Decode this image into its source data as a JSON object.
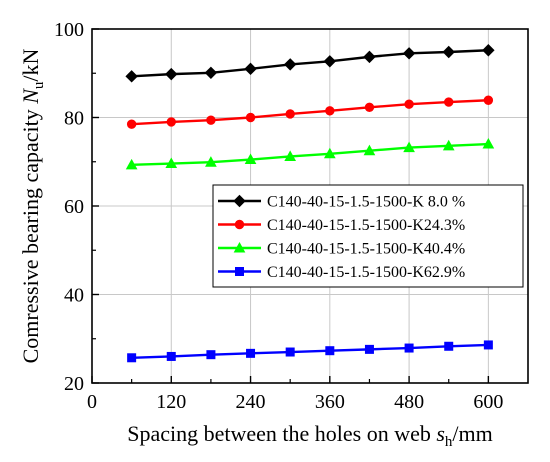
{
  "chart_data": {
    "type": "line",
    "x": [
      60,
      120,
      180,
      240,
      300,
      360,
      420,
      480,
      540,
      600
    ],
    "series": [
      {
        "name": "C140-40-15-1.5-1500-K 8.0 %",
        "color": "#000000",
        "marker": "diamond",
        "values": [
          89.3,
          89.8,
          90.1,
          91.0,
          92.0,
          92.7,
          93.7,
          94.5,
          94.8,
          95.2
        ]
      },
      {
        "name": "C140-40-15-1.5-1500-K24.3%",
        "color": "#ff0000",
        "marker": "circle",
        "values": [
          78.5,
          79.0,
          79.4,
          80.0,
          80.8,
          81.5,
          82.3,
          83.0,
          83.5,
          83.9
        ]
      },
      {
        "name": "C140-40-15-1.5-1500-K40.4%",
        "color": "#00ff00",
        "marker": "triangle",
        "values": [
          69.3,
          69.6,
          69.9,
          70.5,
          71.2,
          71.8,
          72.5,
          73.2,
          73.6,
          74.0
        ]
      },
      {
        "name": "C140-40-15-1.5-1500-K62.9%",
        "color": "#0000ff",
        "marker": "square",
        "values": [
          25.7,
          26.0,
          26.4,
          26.7,
          27.0,
          27.3,
          27.6,
          27.9,
          28.3,
          28.6
        ]
      }
    ],
    "xlim": [
      0,
      660
    ],
    "ylim": [
      20,
      100
    ],
    "x_ticks": [
      "0",
      "120",
      "240",
      "360",
      "480",
      "600"
    ],
    "y_ticks": [
      "20",
      "40",
      "60",
      "80",
      "100"
    ],
    "xlabel": {
      "prefix": "Spacing between the holes on web ",
      "var": "s",
      "sub": "h",
      "suffix": "/mm"
    },
    "ylabel": {
      "prefix": "Comressive bearing capacity ",
      "var": "N",
      "sub": "u",
      "suffix": "/kN"
    },
    "grid": true,
    "legend_position": "center-right"
  }
}
